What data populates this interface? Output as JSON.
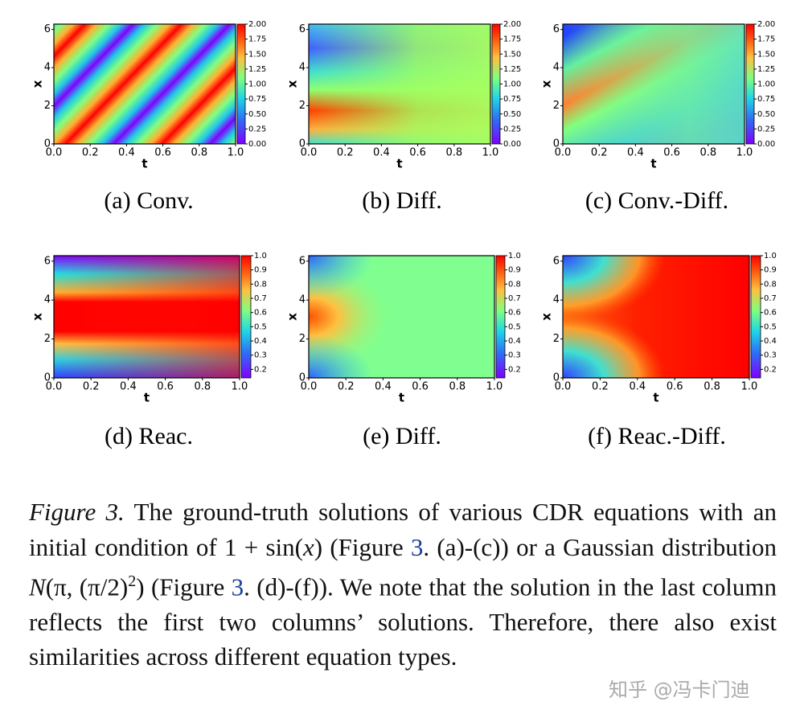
{
  "panels": [
    {
      "caption": "(a) Conv.",
      "xlabel": "t",
      "ylabel": "x",
      "xlim": [
        0,
        1
      ],
      "ylim": [
        0,
        6.28
      ],
      "xticks": [
        {
          "value": 0,
          "label": "0.0"
        },
        {
          "value": 0.2,
          "label": "0.2"
        },
        {
          "value": 0.4,
          "label": "0.4"
        },
        {
          "value": 0.6,
          "label": "0.6"
        },
        {
          "value": 0.8,
          "label": "0.8"
        },
        {
          "value": 1,
          "label": "1.0"
        }
      ],
      "yticks": [
        0,
        2,
        4,
        6
      ],
      "clim": [
        0,
        2
      ],
      "cticks": [
        {
          "value": 0,
          "label": "0.00"
        },
        {
          "value": 0.25,
          "label": "0.25"
        },
        {
          "value": 0.5,
          "label": "0.50"
        },
        {
          "value": 0.75,
          "label": "0.75"
        },
        {
          "value": 1,
          "label": "1.00"
        },
        {
          "value": 1.25,
          "label": "1.25"
        },
        {
          "value": 1.5,
          "label": "1.50"
        },
        {
          "value": 1.75,
          "label": "1.75"
        },
        {
          "value": 2,
          "label": "2.00"
        }
      ]
    },
    {
      "caption": "(b) Diff.",
      "xlabel": "t",
      "ylabel": "x",
      "xlim": [
        0,
        1
      ],
      "ylim": [
        0,
        6.28
      ],
      "xticks": [
        {
          "value": 0,
          "label": "0.0"
        },
        {
          "value": 0.2,
          "label": "0.2"
        },
        {
          "value": 0.4,
          "label": "0.4"
        },
        {
          "value": 0.6,
          "label": "0.6"
        },
        {
          "value": 0.8,
          "label": "0.8"
        },
        {
          "value": 1,
          "label": "1.0"
        }
      ],
      "yticks": [
        0,
        2,
        4,
        6
      ],
      "clim": [
        0,
        2
      ],
      "cticks": [
        {
          "value": 0,
          "label": "0.00"
        },
        {
          "value": 0.25,
          "label": "0.25"
        },
        {
          "value": 0.5,
          "label": "0.50"
        },
        {
          "value": 0.75,
          "label": "0.75"
        },
        {
          "value": 1,
          "label": "1.00"
        },
        {
          "value": 1.25,
          "label": "1.25"
        },
        {
          "value": 1.5,
          "label": "1.50"
        },
        {
          "value": 1.75,
          "label": "1.75"
        },
        {
          "value": 2,
          "label": "2.00"
        }
      ]
    },
    {
      "caption": "(c) Conv.-Diff.",
      "xlabel": "t",
      "ylabel": "x",
      "xlim": [
        0,
        1
      ],
      "ylim": [
        0,
        6.28
      ],
      "xticks": [
        {
          "value": 0,
          "label": "0.0"
        },
        {
          "value": 0.2,
          "label": "0.2"
        },
        {
          "value": 0.4,
          "label": "0.4"
        },
        {
          "value": 0.6,
          "label": "0.6"
        },
        {
          "value": 0.8,
          "label": "0.8"
        },
        {
          "value": 1,
          "label": "1.0"
        }
      ],
      "yticks": [
        0,
        2,
        4,
        6
      ],
      "clim": [
        0,
        2
      ],
      "cticks": [
        {
          "value": 0,
          "label": "0.00"
        },
        {
          "value": 0.25,
          "label": "0.25"
        },
        {
          "value": 0.5,
          "label": "0.50"
        },
        {
          "value": 0.75,
          "label": "0.75"
        },
        {
          "value": 1,
          "label": "1.00"
        },
        {
          "value": 1.25,
          "label": "1.25"
        },
        {
          "value": 1.5,
          "label": "1.50"
        },
        {
          "value": 1.75,
          "label": "1.75"
        },
        {
          "value": 2,
          "label": "2.00"
        }
      ]
    },
    {
      "caption": "(d) Reac.",
      "xlabel": "t",
      "ylabel": "x",
      "xlim": [
        0,
        1
      ],
      "ylim": [
        0,
        6.28
      ],
      "xticks": [
        {
          "value": 0,
          "label": "0.0"
        },
        {
          "value": 0.2,
          "label": "0.2"
        },
        {
          "value": 0.4,
          "label": "0.4"
        },
        {
          "value": 0.6,
          "label": "0.6"
        },
        {
          "value": 0.8,
          "label": "0.8"
        },
        {
          "value": 1,
          "label": "1.0"
        }
      ],
      "yticks": [
        0,
        2,
        4,
        6
      ],
      "clim": [
        0.14,
        1
      ],
      "cticks": [
        0.2,
        0.3,
        0.4,
        0.5,
        0.6,
        0.7,
        0.8,
        0.9,
        {
          "value": 1,
          "label": "1.0"
        }
      ]
    },
    {
      "caption": "(e) Diff.",
      "xlabel": "t",
      "ylabel": "x",
      "xlim": [
        0,
        1
      ],
      "ylim": [
        0,
        6.28
      ],
      "xticks": [
        {
          "value": 0,
          "label": "0.0"
        },
        {
          "value": 0.2,
          "label": "0.2"
        },
        {
          "value": 0.4,
          "label": "0.4"
        },
        {
          "value": 0.6,
          "label": "0.6"
        },
        {
          "value": 0.8,
          "label": "0.8"
        },
        {
          "value": 1,
          "label": "1.0"
        }
      ],
      "yticks": [
        0,
        2,
        4,
        6
      ],
      "clim": [
        0.14,
        1
      ],
      "cticks": [
        0.2,
        0.3,
        0.4,
        0.5,
        0.6,
        0.7,
        0.8,
        0.9,
        {
          "value": 1,
          "label": "1.0"
        }
      ]
    },
    {
      "caption": "(f) Reac.-Diff.",
      "xlabel": "t",
      "ylabel": "x",
      "xlim": [
        0,
        1
      ],
      "ylim": [
        0,
        6.28
      ],
      "xticks": [
        {
          "value": 0,
          "label": "0.0"
        },
        {
          "value": 0.2,
          "label": "0.2"
        },
        {
          "value": 0.4,
          "label": "0.4"
        },
        {
          "value": 0.6,
          "label": "0.6"
        },
        {
          "value": 0.8,
          "label": "0.8"
        },
        {
          "value": 1,
          "label": "1.0"
        }
      ],
      "yticks": [
        0,
        2,
        4,
        6
      ],
      "clim": [
        0.14,
        1
      ],
      "cticks": [
        0.2,
        0.3,
        0.4,
        0.5,
        0.6,
        0.7,
        0.8,
        0.9,
        {
          "value": 1,
          "label": "1.0"
        }
      ]
    }
  ],
  "caption": {
    "label": "Figure 3.",
    "parts": [
      " The ground-truth solutions of various CDR equations with an initial condition of ",
      "1 + sin(",
      "x",
      ")",
      " (Figure ",
      "3",
      ".  (a)-(c)) or a Gaussian distribution ",
      "N",
      "(π, (π/2)",
      "2",
      ")",
      " (Figure ",
      "3",
      ". (d)-(f)). We note that the solution in the last column reflects the first two columns’ solutions. Therefore, there also exist similarities across different equation types."
    ]
  },
  "watermark": "知乎 @冯卡门迪"
}
